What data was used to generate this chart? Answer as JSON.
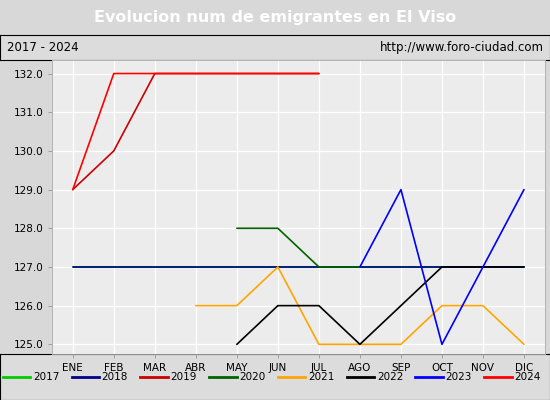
{
  "title": "Evolucion num de emigrantes en El Viso",
  "subtitle_left": "2017 - 2024",
  "subtitle_right": "http://www.foro-ciudad.com",
  "months": [
    "ENE",
    "FEB",
    "MAR",
    "ABR",
    "MAY",
    "JUN",
    "JUL",
    "AGO",
    "SEP",
    "OCT",
    "NOV",
    "DIC"
  ],
  "month_indices": [
    1,
    2,
    3,
    4,
    5,
    6,
    7,
    8,
    9,
    10,
    11,
    12
  ],
  "ylim": [
    124.75,
    132.35
  ],
  "yticks": [
    125.0,
    126.0,
    127.0,
    128.0,
    129.0,
    130.0,
    131.0,
    132.0
  ],
  "series": {
    "2017": {
      "color": "#00cc00",
      "data": [
        [
          1,
          127
        ],
        [
          2,
          127
        ],
        [
          3,
          127
        ],
        [
          4,
          127
        ],
        [
          5,
          127
        ],
        [
          6,
          127
        ],
        [
          7,
          127
        ],
        [
          8,
          127
        ],
        [
          9,
          127
        ],
        [
          10,
          127
        ],
        [
          11,
          127
        ],
        [
          12,
          127
        ]
      ]
    },
    "2018": {
      "color": "#00008b",
      "data": [
        [
          1,
          127
        ],
        [
          2,
          127
        ],
        [
          3,
          127
        ],
        [
          4,
          127
        ],
        [
          5,
          127
        ],
        [
          6,
          127
        ],
        [
          7,
          127
        ],
        [
          8,
          127
        ],
        [
          9,
          127
        ],
        [
          10,
          127
        ],
        [
          11,
          127
        ],
        [
          12,
          127
        ]
      ]
    },
    "2019": {
      "color": "#cc0000",
      "data": [
        [
          1,
          129
        ],
        [
          2,
          130
        ],
        [
          3,
          132
        ],
        [
          4,
          132
        ],
        [
          5,
          132
        ],
        [
          6,
          132
        ],
        [
          7,
          132
        ]
      ]
    },
    "2020": {
      "color": "#006400",
      "data": [
        [
          5,
          128
        ],
        [
          6,
          128
        ],
        [
          7,
          127
        ],
        [
          8,
          127
        ]
      ]
    },
    "2021": {
      "color": "#ffa500",
      "data": [
        [
          4,
          126
        ],
        [
          5,
          126
        ],
        [
          6,
          127
        ],
        [
          7,
          125
        ],
        [
          8,
          125
        ],
        [
          9,
          125
        ],
        [
          10,
          126
        ],
        [
          11,
          126
        ],
        [
          12,
          125
        ]
      ]
    },
    "2022": {
      "color": "#000000",
      "data": [
        [
          5,
          125
        ],
        [
          6,
          126
        ],
        [
          7,
          126
        ],
        [
          8,
          125
        ],
        [
          9,
          126
        ],
        [
          10,
          127
        ],
        [
          11,
          127
        ],
        [
          12,
          127
        ]
      ]
    },
    "2023": {
      "color": "#0000ff",
      "data": [
        [
          8,
          127
        ],
        [
          9,
          129
        ],
        [
          10,
          125
        ],
        [
          11,
          127
        ],
        [
          12,
          129
        ]
      ]
    },
    "2024": {
      "color": "#ff0000",
      "data": [
        [
          1,
          129
        ],
        [
          2,
          132
        ],
        [
          3,
          132
        ],
        [
          4,
          132
        ],
        [
          5,
          132
        ],
        [
          6,
          132
        ],
        [
          7,
          132
        ]
      ]
    }
  },
  "legend_order": [
    "2017",
    "2018",
    "2019",
    "2020",
    "2021",
    "2022",
    "2023",
    "2024"
  ],
  "bg_color": "#d8d8d8",
  "plot_bg_color": "#ececec",
  "title_bg_color": "#4472c4",
  "title_color": "#ffffff",
  "grid_color": "#ffffff",
  "subtitle_bg": "#dcdcdc"
}
